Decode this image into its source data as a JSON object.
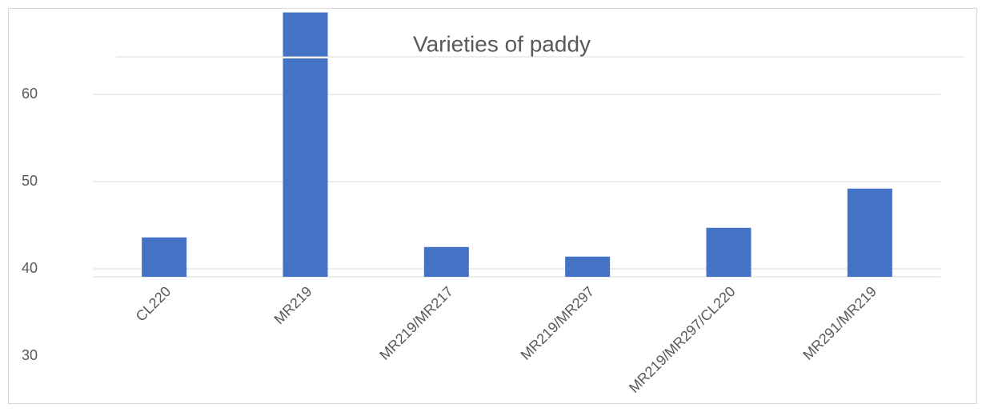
{
  "chart_data": {
    "type": "bar",
    "title": "Varieties of paddy",
    "categories": [
      "CL220",
      "MR219",
      "MR219/MR217",
      "MR219/MR297",
      "MR219/MR297/CL220",
      "MR291/MR219"
    ],
    "values": [
      43.6,
      69.4,
      42.5,
      41.4,
      44.7,
      49.2
    ],
    "color": "#4472c4",
    "ylim": [
      25,
      70
    ],
    "yticks": [
      30,
      40,
      50,
      60
    ],
    "grid": true
  }
}
